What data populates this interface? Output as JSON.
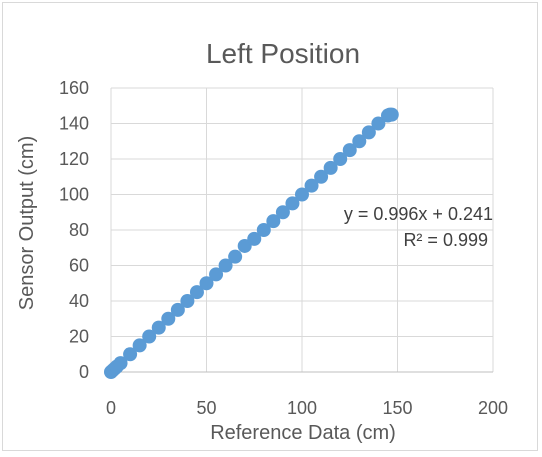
{
  "chart_data": {
    "type": "scatter",
    "title": "Left Position",
    "xlabel": "Reference Data (cm)",
    "ylabel": "Sensor Output (cm)",
    "xlim": [
      0,
      200
    ],
    "ylim": [
      0,
      160
    ],
    "xticks": [
      0,
      50,
      100,
      150,
      200
    ],
    "yticks": [
      0,
      20,
      40,
      60,
      80,
      100,
      120,
      140,
      160
    ],
    "x_tick_labels": [
      "0",
      "50",
      "100",
      "150",
      "200"
    ],
    "y_tick_labels": [
      "0",
      "20",
      "40",
      "60",
      "80",
      "100",
      "120",
      "140",
      "160"
    ],
    "grid": true,
    "marker_color": "#5b9bd5",
    "series": [
      {
        "x": [
          0,
          1,
          2,
          3,
          5,
          10,
          15,
          20,
          25,
          30,
          35,
          40,
          45,
          50,
          55,
          60,
          65,
          70,
          75,
          80,
          85,
          90,
          95,
          100,
          105,
          110,
          115,
          120,
          125,
          130,
          135,
          140,
          145,
          146,
          147
        ],
        "y": [
          0,
          1,
          2,
          3,
          5,
          10,
          15,
          20,
          25,
          30,
          35,
          40,
          45,
          50,
          55,
          60,
          65,
          71,
          75,
          80,
          85,
          90,
          95,
          100,
          105,
          110,
          115,
          120,
          125,
          130,
          135,
          140,
          144.5,
          145,
          145
        ]
      }
    ],
    "annotations": [
      "y = 0.996x + 0.241",
      "R² = 0.999"
    ]
  }
}
